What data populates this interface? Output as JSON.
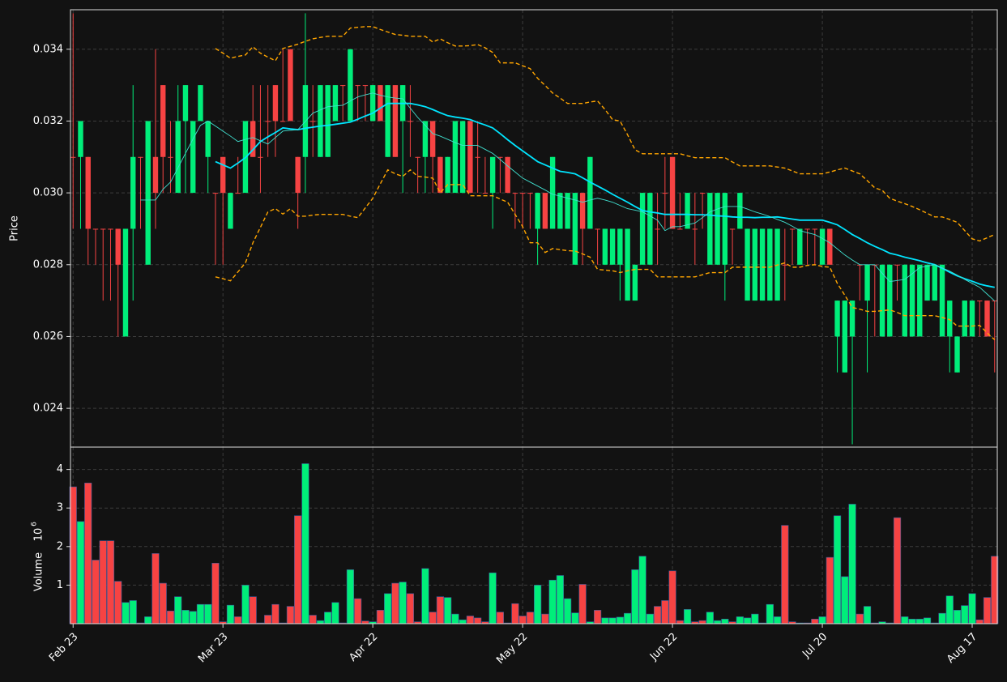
{
  "chart_data": {
    "type": "candlestick",
    "ylabel": "Price",
    "volume_label": "Volume",
    "volume_unit": "10",
    "volume_exponent": "6",
    "up_color": "#00ee7a",
    "down_color": "#f64343",
    "grid": true,
    "ylim": [
      0.02292,
      0.0351
    ],
    "yticks": [
      0.024,
      0.026,
      0.028,
      {
        "value": 0.03,
        "label": "0.030"
      },
      0.032,
      0.034
    ],
    "volume_ylim": [
      0,
      4.58
    ],
    "volume_yticks": [
      1,
      2,
      3,
      4
    ],
    "categories": [
      "Feb 23",
      null,
      null,
      null,
      null,
      null,
      null,
      null,
      null,
      null,
      null,
      null,
      null,
      null,
      null,
      null,
      null,
      null,
      null,
      null,
      "Mar 23",
      null,
      null,
      null,
      null,
      null,
      null,
      null,
      null,
      null,
      null,
      null,
      null,
      null,
      null,
      null,
      null,
      null,
      null,
      null,
      "Apr 22",
      null,
      null,
      null,
      null,
      null,
      null,
      null,
      null,
      null,
      null,
      null,
      null,
      null,
      null,
      null,
      null,
      null,
      null,
      null,
      "May 22",
      null,
      null,
      null,
      null,
      null,
      null,
      null,
      null,
      null,
      null,
      null,
      null,
      null,
      null,
      null,
      null,
      null,
      null,
      null,
      "Jun 22",
      null,
      null,
      null,
      null,
      null,
      null,
      null,
      null,
      null,
      null,
      null,
      null,
      null,
      null,
      null,
      null,
      null,
      null,
      null,
      "Jul 20",
      null,
      null,
      null,
      null,
      null,
      null,
      null,
      null,
      null,
      null,
      null,
      null,
      null,
      null,
      null,
      null,
      null,
      null,
      null,
      "Aug 17",
      null,
      null,
      null
    ],
    "open": [
      0.031,
      0.031,
      0.031,
      0.029,
      0.029,
      0.029,
      0.029,
      0.026,
      0.029,
      0.031,
      0.028,
      0.031,
      0.033,
      0.031,
      0.03,
      0.032,
      0.03,
      0.032,
      0.031,
      0.03,
      0.031,
      0.029,
      0.03,
      0.03,
      0.032,
      0.031,
      0.032,
      0.033,
      0.032,
      0.034,
      0.031,
      0.031,
      0.032,
      0.031,
      0.031,
      0.032,
      0.033,
      0.032,
      0.033,
      0.033,
      0.032,
      0.033,
      0.031,
      0.033,
      0.032,
      0.032,
      0.031,
      0.031,
      0.032,
      0.031,
      0.03,
      0.03,
      0.03,
      0.032,
      0.031,
      0.03,
      0.03,
      0.031,
      0.031,
      0.03,
      0.03,
      0.03,
      0.029,
      0.03,
      0.029,
      0.029,
      0.029,
      0.028,
      0.03,
      0.029,
      0.029,
      0.028,
      0.028,
      0.028,
      0.027,
      0.027,
      0.028,
      0.028,
      0.029,
      0.03,
      0.031,
      0.029,
      0.029,
      0.029,
      0.03,
      0.028,
      0.028,
      0.028,
      0.029,
      0.029,
      0.027,
      0.027,
      0.027,
      0.027,
      0.027,
      0.028,
      0.029,
      0.028,
      0.029,
      0.029,
      0.028,
      0.029,
      0.026,
      0.025,
      0.026,
      0.028,
      0.027,
      0.028,
      0.026,
      0.026,
      0.028,
      0.026,
      0.026,
      0.026,
      0.027,
      0.027,
      0.026,
      0.026,
      0.025,
      0.026,
      0.026,
      0.027,
      0.027,
      0.027
    ],
    "high": [
      0.035,
      0.032,
      0.031,
      0.029,
      0.029,
      0.029,
      0.029,
      0.029,
      0.033,
      0.031,
      0.032,
      0.034,
      0.033,
      0.032,
      0.033,
      0.033,
      0.032,
      0.033,
      0.032,
      0.03,
      0.031,
      0.03,
      0.031,
      0.032,
      0.033,
      0.033,
      0.033,
      0.033,
      0.034,
      0.034,
      0.031,
      0.035,
      0.033,
      0.033,
      0.033,
      0.033,
      0.033,
      0.034,
      0.033,
      0.033,
      0.033,
      0.033,
      0.033,
      0.033,
      0.033,
      0.033,
      0.031,
      0.032,
      0.032,
      0.031,
      0.031,
      0.032,
      0.032,
      0.032,
      0.032,
      0.031,
      0.031,
      0.031,
      0.031,
      0.03,
      0.03,
      0.03,
      0.03,
      0.03,
      0.031,
      0.03,
      0.03,
      0.03,
      0.03,
      0.031,
      0.029,
      0.029,
      0.029,
      0.029,
      0.029,
      0.028,
      0.03,
      0.03,
      0.03,
      0.031,
      0.031,
      0.03,
      0.03,
      0.03,
      0.03,
      0.03,
      0.03,
      0.03,
      0.029,
      0.03,
      0.029,
      0.029,
      0.029,
      0.029,
      0.029,
      0.029,
      0.029,
      0.029,
      0.029,
      0.029,
      0.029,
      0.029,
      0.027,
      0.027,
      0.027,
      0.028,
      0.028,
      0.028,
      0.028,
      0.028,
      0.028,
      0.028,
      0.028,
      0.028,
      0.028,
      0.028,
      0.028,
      0.027,
      0.026,
      0.027,
      0.027,
      0.027,
      0.027,
      0.027
    ],
    "low": [
      0.029,
      0.029,
      0.028,
      0.028,
      0.027,
      0.027,
      0.026,
      0.026,
      0.027,
      0.029,
      0.028,
      0.029,
      0.03,
      0.03,
      0.03,
      0.03,
      0.03,
      0.032,
      0.03,
      0.028,
      0.028,
      0.029,
      0.03,
      0.03,
      0.031,
      0.03,
      0.031,
      0.031,
      0.032,
      0.032,
      0.029,
      0.03,
      0.031,
      0.031,
      0.031,
      0.032,
      0.032,
      0.032,
      0.032,
      0.032,
      0.032,
      0.032,
      0.031,
      0.031,
      0.03,
      0.031,
      0.03,
      0.03,
      0.03,
      0.03,
      0.03,
      0.03,
      0.03,
      0.03,
      0.03,
      0.03,
      0.029,
      0.03,
      0.03,
      0.029,
      0.029,
      0.029,
      0.028,
      0.029,
      0.029,
      0.029,
      0.029,
      0.028,
      0.028,
      0.029,
      0.028,
      0.028,
      0.028,
      0.027,
      0.027,
      0.027,
      0.028,
      0.028,
      0.028,
      0.029,
      0.029,
      0.029,
      0.029,
      0.028,
      0.029,
      0.028,
      0.028,
      0.027,
      0.028,
      0.029,
      0.027,
      0.027,
      0.027,
      0.027,
      0.027,
      0.027,
      0.028,
      0.028,
      0.028,
      0.028,
      0.028,
      0.028,
      0.025,
      0.025,
      0.023,
      0.027,
      0.025,
      0.026,
      0.026,
      0.026,
      0.027,
      0.026,
      0.026,
      0.026,
      0.027,
      0.027,
      0.026,
      0.025,
      0.025,
      0.026,
      0.026,
      0.026,
      0.026,
      0.025
    ],
    "close": [
      0.031,
      0.032,
      0.029,
      0.029,
      0.029,
      0.029,
      0.028,
      0.029,
      0.031,
      0.031,
      0.032,
      0.03,
      0.031,
      0.031,
      0.032,
      0.033,
      0.032,
      0.033,
      0.032,
      0.03,
      0.03,
      0.03,
      0.03,
      0.032,
      0.031,
      0.031,
      0.032,
      0.032,
      0.032,
      0.032,
      0.03,
      0.033,
      0.032,
      0.033,
      0.033,
      0.033,
      0.033,
      0.034,
      0.033,
      0.033,
      0.033,
      0.032,
      0.033,
      0.031,
      0.033,
      0.032,
      0.031,
      0.032,
      0.031,
      0.03,
      0.031,
      0.032,
      0.032,
      0.03,
      0.031,
      0.03,
      0.031,
      0.031,
      0.03,
      0.03,
      0.03,
      0.03,
      0.03,
      0.029,
      0.031,
      0.03,
      0.03,
      0.03,
      0.029,
      0.031,
      0.029,
      0.029,
      0.029,
      0.029,
      0.029,
      0.028,
      0.03,
      0.03,
      0.029,
      0.03,
      0.029,
      0.029,
      0.03,
      0.029,
      0.03,
      0.03,
      0.03,
      0.03,
      0.029,
      0.03,
      0.029,
      0.029,
      0.029,
      0.029,
      0.029,
      0.028,
      0.029,
      0.029,
      0.029,
      0.029,
      0.029,
      0.028,
      0.027,
      0.027,
      0.027,
      0.028,
      0.028,
      0.028,
      0.028,
      0.028,
      0.028,
      0.028,
      0.028,
      0.028,
      0.028,
      0.028,
      0.028,
      0.027,
      0.026,
      0.027,
      0.027,
      0.027,
      0.026,
      0.027
    ],
    "volume": [
      3.55,
      2.65,
      3.65,
      1.65,
      2.15,
      2.15,
      1.1,
      0.55,
      0.6,
      0.02,
      0.18,
      1.82,
      1.05,
      0.33,
      0.7,
      0.35,
      0.32,
      0.5,
      0.5,
      1.57,
      0.05,
      0.48,
      0.18,
      1.0,
      0.7,
      0.02,
      0.22,
      0.5,
      0.02,
      0.45,
      2.8,
      4.15,
      0.22,
      0.08,
      0.3,
      0.55,
      0.02,
      1.4,
      0.65,
      0.07,
      0.05,
      0.35,
      0.78,
      1.05,
      1.08,
      0.78,
      0.05,
      1.43,
      0.3,
      0.7,
      0.68,
      0.25,
      0.1,
      0.2,
      0.15,
      0.05,
      1.32,
      0.3,
      0.02,
      0.52,
      0.2,
      0.3,
      1.0,
      0.25,
      1.13,
      1.25,
      0.65,
      0.28,
      1.02,
      0.05,
      0.35,
      0.15,
      0.15,
      0.17,
      0.27,
      1.4,
      1.75,
      0.25,
      0.45,
      0.6,
      1.37,
      0.08,
      0.37,
      0.05,
      0.08,
      0.3,
      0.08,
      0.12,
      0.05,
      0.18,
      0.15,
      0.25,
      0.02,
      0.5,
      0.18,
      2.55,
      0.05,
      0.02,
      0.02,
      0.12,
      0.18,
      1.72,
      2.8,
      1.22,
      3.1,
      0.25,
      0.45,
      0.02,
      0.05,
      0.02,
      2.75,
      0.18,
      0.12,
      0.12,
      0.15,
      0.02,
      0.27,
      0.72,
      0.35,
      0.47,
      0.78,
      0.1,
      0.68,
      1.75
    ],
    "overlays": [
      {
        "style": "thick",
        "color": "#00e5ff",
        "values": [
          null,
          null,
          null,
          null,
          null,
          null,
          null,
          null,
          null,
          null,
          null,
          null,
          null,
          null,
          null,
          null,
          null,
          null,
          null,
          0.03087,
          0.03078,
          0.03069,
          0.03083,
          0.03098,
          0.0312,
          0.03143,
          0.03156,
          0.03168,
          0.03181,
          0.03178,
          0.03176,
          0.0318,
          0.03183,
          0.03186,
          0.03188,
          0.03191,
          0.03194,
          0.03197,
          0.03205,
          0.03214,
          0.03222,
          0.03236,
          0.03249,
          0.03249,
          0.03249,
          0.03249,
          0.03245,
          0.0324,
          0.03232,
          0.03223,
          0.03215,
          0.03211,
          0.03208,
          0.03204,
          0.03196,
          0.03189,
          0.03181,
          0.03165,
          0.03148,
          0.03132,
          0.03117,
          0.03102,
          0.03087,
          0.03078,
          0.03069,
          0.0306,
          0.03057,
          0.03053,
          0.03042,
          0.0303,
          0.03019,
          0.03008,
          0.02996,
          0.02985,
          0.02974,
          0.02962,
          0.02951,
          0.02947,
          0.02944,
          0.0294,
          0.0294,
          0.0294,
          0.0294,
          0.02939,
          0.02939,
          0.02938,
          0.02936,
          0.02935,
          0.02933,
          0.02932,
          0.02932,
          0.02931,
          0.02932,
          0.02932,
          0.02933,
          0.0293,
          0.02927,
          0.02924,
          0.02924,
          0.02924,
          0.02924,
          0.02918,
          0.02911,
          0.02898,
          0.02884,
          0.02873,
          0.02861,
          0.02851,
          0.02842,
          0.02832,
          0.02827,
          0.02821,
          0.02816,
          0.02811,
          0.02805,
          0.028,
          0.0279,
          0.02779,
          0.02769,
          0.02761,
          0.02754,
          0.02746,
          0.02741,
          0.02737
        ]
      },
      {
        "style": "thin",
        "color": "#40e0d0",
        "values": [
          null,
          null,
          null,
          null,
          null,
          null,
          null,
          null,
          null,
          0.0298,
          0.0298,
          0.0298,
          0.0301,
          0.0303,
          0.0307,
          0.0311,
          0.0315,
          0.03188,
          0.032,
          0.03186,
          0.03172,
          0.03158,
          0.03143,
          0.03149,
          0.03154,
          0.03145,
          0.03136,
          0.03154,
          0.03172,
          0.03174,
          0.03176,
          0.03199,
          0.03222,
          0.03231,
          0.0324,
          0.03242,
          0.03244,
          0.03256,
          0.03267,
          0.03273,
          0.03278,
          0.03272,
          0.03267,
          0.03264,
          0.03262,
          0.03236,
          0.0321,
          0.03188,
          0.03165,
          0.03158,
          0.03149,
          0.0314,
          0.03132,
          0.03132,
          0.03132,
          0.03121,
          0.0311,
          0.03093,
          0.03075,
          0.03058,
          0.03041,
          0.0303,
          0.03019,
          0.03008,
          0.02996,
          0.02991,
          0.02985,
          0.0298,
          0.02974,
          0.0298,
          0.02985,
          0.0298,
          0.02974,
          0.02965,
          0.02956,
          0.02952,
          0.02947,
          0.02936,
          0.02924,
          0.02895,
          0.02906,
          0.02906,
          0.02911,
          0.02916,
          0.02931,
          0.02947,
          0.02955,
          0.02962,
          0.02962,
          0.02962,
          0.02955,
          0.02947,
          0.02941,
          0.02934,
          0.02926,
          0.02918,
          0.02907,
          0.02895,
          0.02889,
          0.02884,
          0.02873,
          0.02861,
          0.02844,
          0.02827,
          0.02813,
          0.028,
          0.028,
          0.028,
          0.02776,
          0.02753,
          0.02756,
          0.02759,
          0.02775,
          0.02792,
          0.02796,
          0.028,
          0.02791,
          0.02782,
          0.02771,
          0.02759,
          0.02748,
          0.02737,
          0.02718,
          0.02699
        ]
      },
      {
        "style": "dashed",
        "color": "#ffa500",
        "values": [
          null,
          null,
          null,
          null,
          null,
          null,
          null,
          null,
          null,
          null,
          null,
          null,
          null,
          null,
          null,
          null,
          null,
          null,
          null,
          0.03402,
          0.03389,
          0.03375,
          0.0338,
          0.03384,
          0.03407,
          0.03389,
          0.03378,
          0.03368,
          0.03402,
          0.03408,
          0.03414,
          0.03422,
          0.03429,
          0.03433,
          0.03436,
          0.03436,
          0.03436,
          0.03459,
          0.03461,
          0.03463,
          0.03463,
          0.03455,
          0.03448,
          0.03441,
          0.03439,
          0.03436,
          0.03436,
          0.03436,
          0.0342,
          0.03429,
          0.03418,
          0.03409,
          0.03409,
          0.0341,
          0.03413,
          0.03404,
          0.03391,
          0.03362,
          0.03362,
          0.03362,
          0.03354,
          0.03346,
          0.03319,
          0.03299,
          0.03278,
          0.03264,
          0.03249,
          0.03249,
          0.03249,
          0.03253,
          0.03256,
          0.03232,
          0.03204,
          0.032,
          0.03162,
          0.0312,
          0.03109,
          0.03109,
          0.03109,
          0.03109,
          0.03109,
          0.03109,
          0.03103,
          0.03098,
          0.03098,
          0.03098,
          0.03098,
          0.03098,
          0.03086,
          0.03075,
          0.03075,
          0.03075,
          0.03075,
          0.03075,
          0.03072,
          0.03069,
          0.03061,
          0.03053,
          0.03053,
          0.03053,
          0.03053,
          0.03058,
          0.03064,
          0.03069,
          0.03061,
          0.03053,
          0.03034,
          0.03014,
          0.03007,
          0.02985,
          0.02977,
          0.0297,
          0.02962,
          0.02953,
          0.02943,
          0.02933,
          0.02933,
          0.02926,
          0.02918,
          0.02895,
          0.02872,
          0.02866,
          0.02875,
          0.02884
        ]
      },
      {
        "style": "dashed",
        "color": "#ffa500",
        "values": [
          null,
          null,
          null,
          null,
          null,
          null,
          null,
          null,
          null,
          null,
          null,
          null,
          null,
          null,
          null,
          null,
          null,
          null,
          null,
          0.02766,
          0.02761,
          0.02755,
          0.0278,
          0.02805,
          0.02861,
          0.02904,
          0.02947,
          0.02956,
          0.02941,
          0.02956,
          0.02935,
          0.02935,
          0.02938,
          0.0294,
          0.0294,
          0.0294,
          0.0294,
          0.02935,
          0.02931,
          0.02958,
          0.02985,
          0.03025,
          0.03064,
          0.03053,
          0.03046,
          0.03064,
          0.03046,
          0.03044,
          0.03041,
          0.03,
          0.03023,
          0.03023,
          0.03023,
          0.02992,
          0.02992,
          0.02992,
          0.02992,
          0.02983,
          0.02974,
          0.0294,
          0.02906,
          0.02861,
          0.02861,
          0.02834,
          0.02845,
          0.02842,
          0.02839,
          0.02838,
          0.0283,
          0.02821,
          0.02787,
          0.02785,
          0.02783,
          0.02778,
          0.02783,
          0.02787,
          0.02787,
          0.02787,
          0.02766,
          0.02766,
          0.02766,
          0.02766,
          0.02766,
          0.02766,
          0.02772,
          0.02778,
          0.02778,
          0.02778,
          0.02793,
          0.02793,
          0.02793,
          0.02793,
          0.02793,
          0.02793,
          0.02799,
          0.02805,
          0.02793,
          0.02793,
          0.02798,
          0.028,
          0.02795,
          0.02793,
          0.02748,
          0.02715,
          0.02681,
          0.02676,
          0.0267,
          0.0267,
          0.02672,
          0.02674,
          0.02667,
          0.02658,
          0.02658,
          0.02658,
          0.02658,
          0.02658,
          0.02653,
          0.02647,
          0.02629,
          0.02629,
          0.02629,
          0.02631,
          0.0261,
          0.02591
        ]
      }
    ]
  }
}
